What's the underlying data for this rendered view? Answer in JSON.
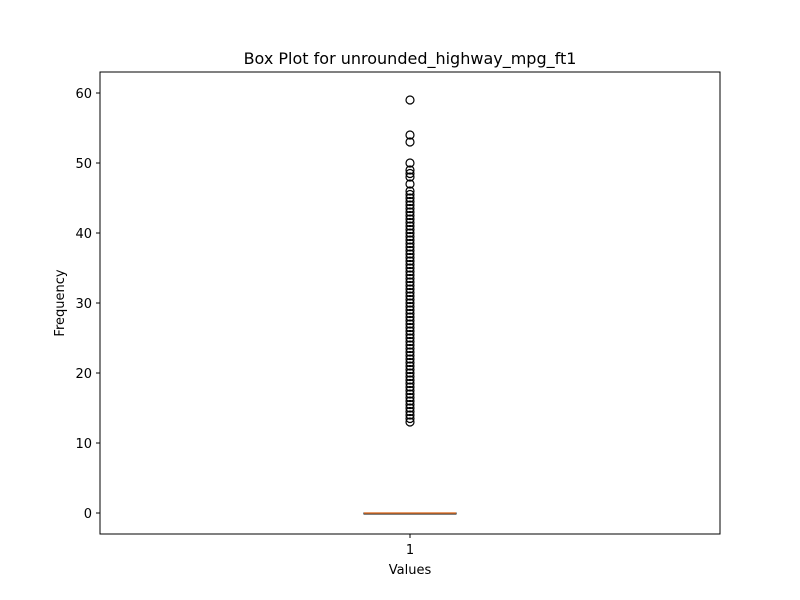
{
  "chart_data": {
    "type": "box",
    "title": "Box Plot for unrounded_highway_mpg_ft1",
    "xlabel": "Values",
    "ylabel": "Frequency",
    "categories": [
      "1"
    ],
    "ylim": [
      -3,
      63
    ],
    "yticks": [
      0,
      10,
      20,
      30,
      40,
      50,
      60
    ],
    "grid": false,
    "legend": "none",
    "box": {
      "whislo": 0,
      "q1": 0,
      "med": 0,
      "q3": 0,
      "whishi": 0
    },
    "fliers": [
      13,
      13.5,
      14,
      14.5,
      15,
      15.5,
      16,
      16.5,
      17,
      17.5,
      18,
      18.5,
      19,
      19.5,
      20,
      20.5,
      21,
      21.5,
      22,
      22.5,
      23,
      23.5,
      24,
      24.5,
      25,
      25.5,
      26,
      26.5,
      27,
      27.5,
      28,
      28.5,
      29,
      29.5,
      30,
      30.5,
      31,
      31.5,
      32,
      32.5,
      33,
      33.5,
      34,
      34.5,
      35,
      35.5,
      36,
      36.5,
      37,
      37.5,
      38,
      38.5,
      39,
      39.5,
      40,
      40.5,
      41,
      41.5,
      42,
      42.5,
      43,
      43.5,
      44,
      44.5,
      45,
      45.5,
      46,
      47,
      48,
      48.5,
      49,
      50,
      53,
      54,
      59
    ],
    "colors": {
      "median": "#e07b39",
      "box": "#000000",
      "flier_edge": "#000000"
    }
  }
}
